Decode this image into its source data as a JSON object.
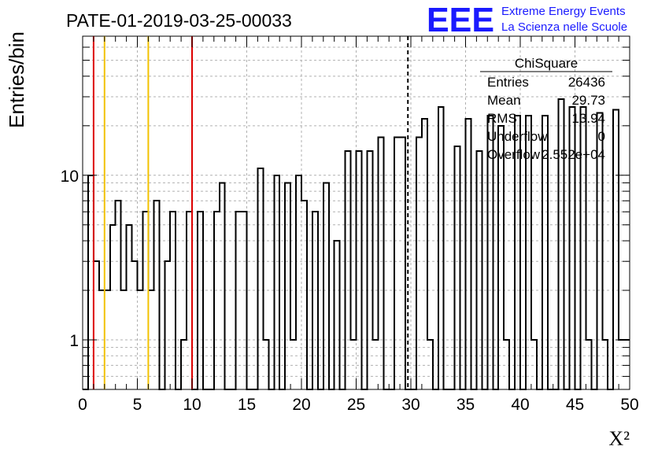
{
  "header": {
    "run_title": "PATE-01-2019-03-25-00033",
    "logo_text": "EEE",
    "logo_line1": "Extreme Energy Events",
    "logo_line2": "La Scienza nelle Scuole"
  },
  "colors": {
    "logo_blue": "#1a1aff",
    "histogram": "#000000",
    "red_line": "#dd0000",
    "yellow_line": "#f2c200",
    "grid": "#b0b0b0"
  },
  "stats_box": {
    "title": "ChiSquare",
    "rows": [
      {
        "label": "Entries",
        "value": "26436"
      },
      {
        "label": "Mean",
        "value": "29.73"
      },
      {
        "label": "RMS",
        "value": "13.94"
      },
      {
        "label": "Underflow",
        "value": "0"
      },
      {
        "label": "Overflow",
        "value": "2.552e+04"
      }
    ]
  },
  "chart_data": {
    "type": "bar",
    "style": "step-histogram",
    "title": "PATE-01-2019-03-25-00033",
    "xlabel": "Χ²",
    "ylabel": "Entries/bin",
    "xlim": [
      0,
      50
    ],
    "ylim": [
      0.5,
      70
    ],
    "yscale": "log",
    "grid": true,
    "bin_width": 0.5,
    "x_ticks": [
      0,
      5,
      10,
      15,
      20,
      25,
      30,
      35,
      40,
      45,
      50
    ],
    "y_ticks": [
      {
        "value": 1,
        "label": "1"
      },
      {
        "value": 10,
        "label": "10"
      }
    ],
    "bin_edges_start": 0,
    "counts": [
      0,
      10,
      3,
      2,
      2,
      5,
      7,
      2,
      5,
      3,
      2,
      6,
      2,
      7,
      0,
      3,
      6,
      0,
      1,
      6,
      0,
      6,
      0,
      0,
      6,
      9,
      0,
      0,
      6,
      6,
      0,
      0,
      11,
      1,
      0,
      10,
      0,
      9,
      1,
      10,
      7,
      0,
      6,
      0,
      9,
      0,
      4,
      0,
      14,
      1,
      14,
      0,
      14,
      1,
      17,
      0,
      0,
      17,
      17,
      0,
      0,
      17,
      22,
      1,
      0,
      26,
      0,
      0,
      15,
      0,
      22,
      0,
      14,
      0,
      23,
      0,
      20,
      1,
      0,
      23,
      0,
      23,
      1,
      0,
      23,
      0,
      0,
      29,
      0,
      26,
      0,
      26,
      1,
      0,
      24,
      1,
      0,
      25,
      1,
      1
    ],
    "vertical_lines": [
      {
        "x": 1,
        "color": "#dd0000",
        "style": "solid"
      },
      {
        "x": 2,
        "color": "#f2c200",
        "style": "solid"
      },
      {
        "x": 6,
        "color": "#f2c200",
        "style": "solid"
      },
      {
        "x": 10,
        "color": "#dd0000",
        "style": "solid"
      },
      {
        "x": 29.73,
        "color": "#000000",
        "style": "dashed"
      }
    ]
  }
}
